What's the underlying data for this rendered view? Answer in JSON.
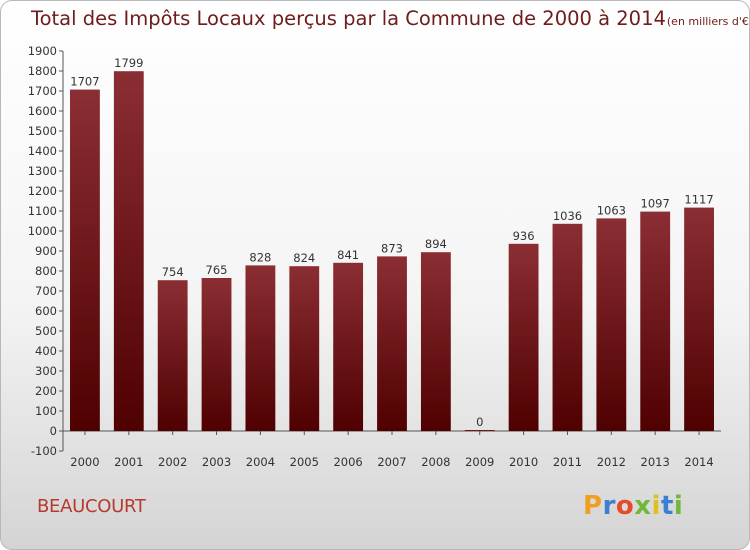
{
  "header": {
    "title": "Total des Impôts Locaux perçus par la Commune de 2000 à 2014",
    "unit": "(en milliers d'€)"
  },
  "footer": {
    "commune": "BEAUCOURT",
    "logo": {
      "text": "Proxiti",
      "letter_colors": [
        "#f0a020",
        "#3a7fd0",
        "#e34b2b",
        "#6fb83a",
        "#e0c020",
        "#3a7fd0",
        "#6fb83a"
      ]
    }
  },
  "chart_data": {
    "type": "bar",
    "title": "Total des Impôts Locaux perçus par la Commune de 2000 à 2014",
    "unit": "(en milliers d'€)",
    "xlabel": "",
    "ylabel": "",
    "categories": [
      "2000",
      "2001",
      "2002",
      "2003",
      "2004",
      "2005",
      "2006",
      "2007",
      "2008",
      "2009",
      "2010",
      "2011",
      "2012",
      "2013",
      "2014"
    ],
    "values": [
      1707,
      1799,
      754,
      765,
      828,
      824,
      841,
      873,
      894,
      0,
      936,
      1036,
      1063,
      1097,
      1117
    ],
    "ylim": [
      -100,
      1900
    ],
    "yticks": [
      -100,
      0,
      100,
      200,
      300,
      400,
      500,
      600,
      700,
      800,
      900,
      1000,
      1100,
      1200,
      1300,
      1400,
      1500,
      1600,
      1700,
      1800,
      1900
    ],
    "grid": false,
    "legend": "none",
    "bar_color_top": "#8b2e34",
    "bar_color_bottom": "#4f0000",
    "axis_color": "#555555",
    "text_color": "#333333"
  }
}
